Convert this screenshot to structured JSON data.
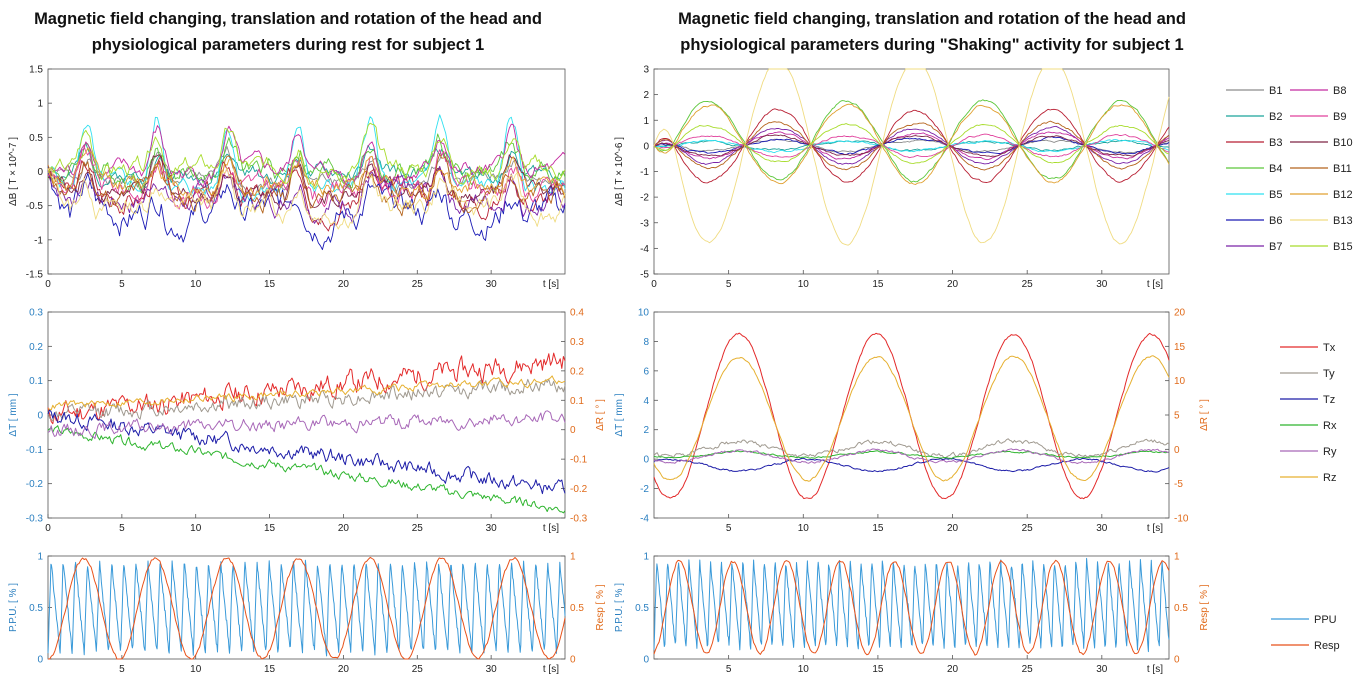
{
  "titles": {
    "left": [
      "Magnetic field changing, translation and rotation of the head and",
      "physiological parameters during rest for subject 1"
    ],
    "right": [
      "Magnetic field changing, translation and rotation of the head and",
      "physiological parameters during \"Shaking\" activity for subject 1"
    ]
  },
  "colors": {
    "B1": "#8c8c8c",
    "B2": "#1aa39a",
    "B3": "#b81f33",
    "B4": "#5cc73a",
    "B5": "#2fe0f0",
    "B6": "#1a1ab5",
    "B7": "#7a23a8",
    "B8": "#c42aa0",
    "B9": "#e0419c",
    "B10": "#7d2545",
    "B11": "#b5651d",
    "B12": "#e0a030",
    "B13": "#f0dc82",
    "B15": "#a8dc2c",
    "Tx": "#e32a2a",
    "Ty": "#a09a90",
    "Tz": "#1c1ca8",
    "Rx": "#2fb52f",
    "Ry": "#a868b8",
    "Rz": "#e6b030",
    "PPU": "#3a9ad9",
    "Resp": "#e8521a",
    "axisLeft": "#2a7fc0",
    "axisRight": "#e06a1a"
  },
  "legend_mag": [
    "B1",
    "B8",
    "B2",
    "B9",
    "B3",
    "B10",
    "B4",
    "B11",
    "B5",
    "B12",
    "B6",
    "B13",
    "B7",
    "B15"
  ],
  "legend_motion": [
    "Tx",
    "Ty",
    "Tz",
    "Rx",
    "Ry",
    "Rz"
  ],
  "legend_phys": [
    "PPU",
    "Resp"
  ],
  "chart_data": [
    {
      "id": "mag_rest",
      "type": "line",
      "title": "Magnetic field changing ... during rest for subject 1",
      "xlabel": "t [s]",
      "ylabel": "ΔB [ T × 10^-7 ]",
      "xlim": [
        0,
        35
      ],
      "ylim": [
        -1.5,
        1.5
      ],
      "xticks": [
        0,
        5,
        10,
        15,
        20,
        25,
        30
      ],
      "yticks": [
        -1.5,
        -1,
        -0.5,
        0,
        0.5,
        1,
        1.5
      ],
      "series": [
        {
          "name": "B1",
          "base": -0.1,
          "amp": 0.15,
          "period": 4.8,
          "noise": 0.1
        },
        {
          "name": "B2",
          "base": 0.0,
          "amp": 0.15,
          "period": 4.8,
          "noise": 0.1
        },
        {
          "name": "B3",
          "base": -0.3,
          "amp": 0.2,
          "period": 4.8,
          "noise": 0.15
        },
        {
          "name": "B4",
          "base": 0.05,
          "amp": 0.2,
          "period": 4.8,
          "noise": 0.15
        },
        {
          "name": "B5",
          "base": -0.1,
          "amp": 0.5,
          "period": 4.8,
          "noise": 0.12
        },
        {
          "name": "B6",
          "base": -0.55,
          "amp": 0.15,
          "period": 4.8,
          "noise": 0.2
        },
        {
          "name": "B7",
          "base": -0.35,
          "amp": 0.2,
          "period": 4.8,
          "noise": 0.15
        },
        {
          "name": "B8",
          "base": 0.05,
          "amp": 0.3,
          "period": 4.8,
          "noise": 0.12
        },
        {
          "name": "B9",
          "base": -0.2,
          "amp": 0.2,
          "period": 4.8,
          "noise": 0.15
        },
        {
          "name": "B10",
          "base": -0.25,
          "amp": 0.2,
          "period": 4.8,
          "noise": 0.12
        },
        {
          "name": "B11",
          "base": -0.3,
          "amp": 0.25,
          "period": 4.8,
          "noise": 0.15
        },
        {
          "name": "B12",
          "base": -0.15,
          "amp": 0.2,
          "period": 4.8,
          "noise": 0.12
        },
        {
          "name": "B13",
          "base": -0.45,
          "amp": 0.2,
          "period": 4.8,
          "noise": 0.15
        },
        {
          "name": "B15",
          "base": 0.1,
          "amp": 0.25,
          "period": 4.8,
          "noise": 0.12
        }
      ]
    },
    {
      "id": "mag_shaking",
      "type": "line",
      "title": "Magnetic field changing ... during \"Shaking\" activity for subject 1",
      "xlabel": "t [s]",
      "ylabel": "ΔB [ T × 10^-6 ]",
      "xlim": [
        0,
        34.5
      ],
      "ylim": [
        -5,
        3
      ],
      "xticks": [
        0,
        5,
        10,
        15,
        20,
        25,
        30
      ],
      "yticks": [
        -5,
        -4,
        -3,
        -2,
        -1,
        0,
        1,
        2,
        3
      ],
      "series": [
        {
          "name": "B1",
          "base": 0,
          "amp": -0.2,
          "period": 9.2,
          "noise": 0.04
        },
        {
          "name": "B2",
          "base": 0,
          "amp": 0.15,
          "period": 9.2,
          "noise": 0.04
        },
        {
          "name": "B3",
          "base": 0,
          "amp": -1.4,
          "period": 9.2,
          "noise": 0.05
        },
        {
          "name": "B4",
          "base": 0.2,
          "amp": 1.55,
          "period": 9.2,
          "noise": 0.05
        },
        {
          "name": "B5",
          "base": 0,
          "amp": 0.2,
          "period": 9.2,
          "noise": 0.04
        },
        {
          "name": "B6",
          "base": 0,
          "amp": -0.3,
          "period": 9.2,
          "noise": 0.04
        },
        {
          "name": "B7",
          "base": 0,
          "amp": -0.7,
          "period": 9.2,
          "noise": 0.04
        },
        {
          "name": "B8",
          "base": 0,
          "amp": -0.5,
          "period": 9.2,
          "noise": 0.04
        },
        {
          "name": "B9",
          "base": 0,
          "amp": 0.4,
          "period": 9.2,
          "noise": 0.04
        },
        {
          "name": "B10",
          "base": 0,
          "amp": -0.4,
          "period": 9.2,
          "noise": 0.04
        },
        {
          "name": "B11",
          "base": 0,
          "amp": -0.9,
          "period": 9.2,
          "noise": 0.05
        },
        {
          "name": "B12",
          "base": 0.1,
          "amp": 1.5,
          "period": 9.2,
          "noise": 0.05
        },
        {
          "name": "B13",
          "base": -0.2,
          "amp": -3.6,
          "period": 9.2,
          "noise": 0.05
        },
        {
          "name": "B15",
          "base": 0.1,
          "amp": 0.7,
          "period": 9.2,
          "noise": 0.04
        }
      ]
    },
    {
      "id": "motion_rest",
      "type": "line",
      "xlabel": "t [s]",
      "ylabel_left": "ΔT [ mm ]",
      "ylabel_right": "ΔR [ ° ]",
      "xlim": [
        0,
        35
      ],
      "ylim_left": [
        -0.3,
        0.3
      ],
      "ylim_right": [
        -0.3,
        0.4
      ],
      "xticks": [
        0,
        5,
        10,
        15,
        20,
        25,
        30
      ],
      "yticks_left": [
        -0.3,
        -0.2,
        -0.1,
        0,
        0.1,
        0.2,
        0.3
      ],
      "yticks_right": [
        -0.3,
        -0.2,
        -0.1,
        0,
        0.1,
        0.2,
        0.3,
        0.4
      ],
      "series": [
        {
          "name": "Tx",
          "axis": "left",
          "start": 0,
          "end": 0.16,
          "noise": 0.03
        },
        {
          "name": "Ty",
          "axis": "left",
          "start": 0,
          "end": 0.09,
          "noise": 0.02
        },
        {
          "name": "Tz",
          "axis": "left",
          "start": 0,
          "end": -0.22,
          "noise": 0.02
        },
        {
          "name": "Rx",
          "axis": "right",
          "start": 0,
          "end": -0.27,
          "noise": 0.015
        },
        {
          "name": "Ry",
          "axis": "right",
          "start": 0,
          "end": 0.04,
          "noise": 0.02
        },
        {
          "name": "Rz",
          "axis": "right",
          "start": 0.08,
          "end": 0.17,
          "noise": 0.012
        }
      ]
    },
    {
      "id": "motion_shaking",
      "type": "line",
      "xlabel": "t [s]",
      "ylabel_left": "ΔT [ mm ]",
      "ylabel_right": "ΔR [ ° ]",
      "xlim": [
        0,
        34.5
      ],
      "ylim_left": [
        -4,
        10
      ],
      "ylim_right": [
        -10,
        20
      ],
      "xticks": [
        5,
        10,
        15,
        20,
        25,
        30
      ],
      "yticks_left": [
        -4,
        -2,
        0,
        2,
        4,
        6,
        8,
        10
      ],
      "yticks_right": [
        -10,
        -5,
        0,
        5,
        10,
        15,
        20
      ],
      "series": [
        {
          "name": "Tx",
          "axis": "left",
          "base": 2.9,
          "amp": 5.6,
          "period": 9.2,
          "noise": 0.08
        },
        {
          "name": "Ty",
          "axis": "left",
          "base": 0.7,
          "amp": 0.5,
          "period": 9.2,
          "noise": 0.15
        },
        {
          "name": "Tz",
          "axis": "left",
          "base": -0.4,
          "amp": -0.4,
          "period": 9.2,
          "noise": 0.06
        },
        {
          "name": "Rx",
          "axis": "left",
          "base": 0.3,
          "amp": 0.2,
          "period": 9.2,
          "noise": 0.05
        },
        {
          "name": "Ry",
          "axis": "left",
          "base": 0.2,
          "amp": 0.4,
          "period": 9.2,
          "noise": 0.08
        },
        {
          "name": "Rz",
          "axis": "right",
          "base": 4.5,
          "amp": 9,
          "period": 9.2,
          "noise": 0.15
        }
      ]
    },
    {
      "id": "phys_rest",
      "type": "line",
      "xlabel": "t [s]",
      "ylabel_left": "P.P.U. [ % ]",
      "ylabel_right": "Resp [ % ]",
      "xlim": [
        0,
        35
      ],
      "ylim_left": [
        0,
        1
      ],
      "ylim_right": [
        0,
        1
      ],
      "xticks": [
        5,
        10,
        15,
        20,
        25,
        30
      ],
      "yticks_left": [
        0,
        0.5,
        1
      ],
      "yticks_right": [
        0,
        0.5,
        1
      ],
      "series": [
        {
          "name": "PPU",
          "axis": "left",
          "period": 0.82,
          "low": 0.05,
          "high": 0.95
        },
        {
          "name": "Resp",
          "axis": "right",
          "period": 4.85,
          "phase": 1.2,
          "low": 0.0,
          "high": 0.98
        }
      ]
    },
    {
      "id": "phys_shaking",
      "type": "line",
      "xlabel": "t [s]",
      "ylabel_left": "P.P.U. [ % ]",
      "ylabel_right": "Resp [ % ]",
      "xlim": [
        0,
        34.5
      ],
      "ylim_left": [
        0,
        1
      ],
      "ylim_right": [
        0,
        1
      ],
      "xticks": [
        5,
        10,
        15,
        20,
        25,
        30
      ],
      "yticks_left": [
        0,
        0.5,
        1
      ],
      "yticks_right": [
        0,
        0.5,
        1
      ],
      "series": [
        {
          "name": "PPU",
          "axis": "left",
          "period": 0.72,
          "low": 0.1,
          "high": 0.95
        },
        {
          "name": "Resp",
          "axis": "right",
          "period": 3.6,
          "phase": 0.8,
          "low": 0.05,
          "high": 0.95
        }
      ]
    }
  ]
}
